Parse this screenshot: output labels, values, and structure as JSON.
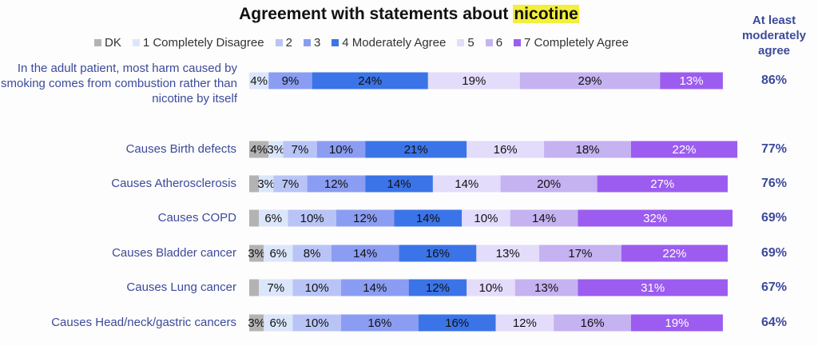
{
  "chart_data": {
    "type": "stacked-bar",
    "title": "Agreement with statements about",
    "title_highlight": "nicotine",
    "categories": [
      "In the adult patient, most harm caused by smoking comes from combustion rather than nicotine by itself",
      "Causes Birth defects",
      "Causes Atherosclerosis",
      "Causes COPD",
      "Causes Bladder cancer",
      "Causes Lung cancer",
      "Causes Head/neck/gastric cancers"
    ],
    "series": [
      {
        "name": "DK",
        "color": "#b3b3b3",
        "values": [
          null,
          4,
          2,
          2,
          3,
          2,
          3
        ],
        "value_labels": [
          null,
          "4%",
          null,
          null,
          "3%",
          null,
          "3%"
        ]
      },
      {
        "name": "1 Completely Disagree",
        "color": "#dbe6fb",
        "values": [
          4,
          3,
          3,
          6,
          6,
          7,
          6
        ],
        "value_labels": [
          "4%",
          "3%",
          "3%",
          "6%",
          "6%",
          "7%",
          "6%"
        ]
      },
      {
        "name": "2",
        "color": "#b9c4f6",
        "values": [
          null,
          7,
          7,
          10,
          8,
          10,
          10
        ],
        "value_labels": [
          null,
          "7%",
          "7%",
          "10%",
          "8%",
          "10%",
          "10%"
        ]
      },
      {
        "name": "3",
        "color": "#8b9df2",
        "values": [
          9,
          10,
          12,
          12,
          14,
          14,
          16
        ],
        "value_labels": [
          "9%",
          "10%",
          "12%",
          "12%",
          "14%",
          "14%",
          "16%"
        ]
      },
      {
        "name": "4 Moderately Agree",
        "color": "#3b74e8",
        "values": [
          24,
          21,
          14,
          14,
          16,
          12,
          16
        ],
        "value_labels": [
          "24%",
          "21%",
          "14%",
          "14%",
          "16%",
          "12%",
          "16%"
        ]
      },
      {
        "name": "5",
        "color": "#e4dcfb",
        "values": [
          19,
          16,
          14,
          10,
          13,
          10,
          12
        ],
        "value_labels": [
          "19%",
          "16%",
          "14%",
          "10%",
          "13%",
          "10%",
          "12%"
        ]
      },
      {
        "name": "6",
        "color": "#c5b2f1",
        "values": [
          29,
          18,
          20,
          14,
          17,
          13,
          16
        ],
        "value_labels": [
          "29%",
          "18%",
          "20%",
          "14%",
          "17%",
          "13%",
          "16%"
        ]
      },
      {
        "name": "7 Completely Agree",
        "color": "#9c5cf0",
        "values": [
          13,
          22,
          27,
          32,
          22,
          31,
          19
        ],
        "value_labels": [
          "13%",
          "22%",
          "27%",
          "32%",
          "22%",
          "31%",
          "19%"
        ]
      }
    ],
    "agree": {
      "title": "At least moderately agree",
      "values": [
        86,
        77,
        76,
        69,
        69,
        67,
        64
      ],
      "value_labels": [
        "86%",
        "77%",
        "76%",
        "69%",
        "69%",
        "67%",
        "64%"
      ]
    }
  }
}
